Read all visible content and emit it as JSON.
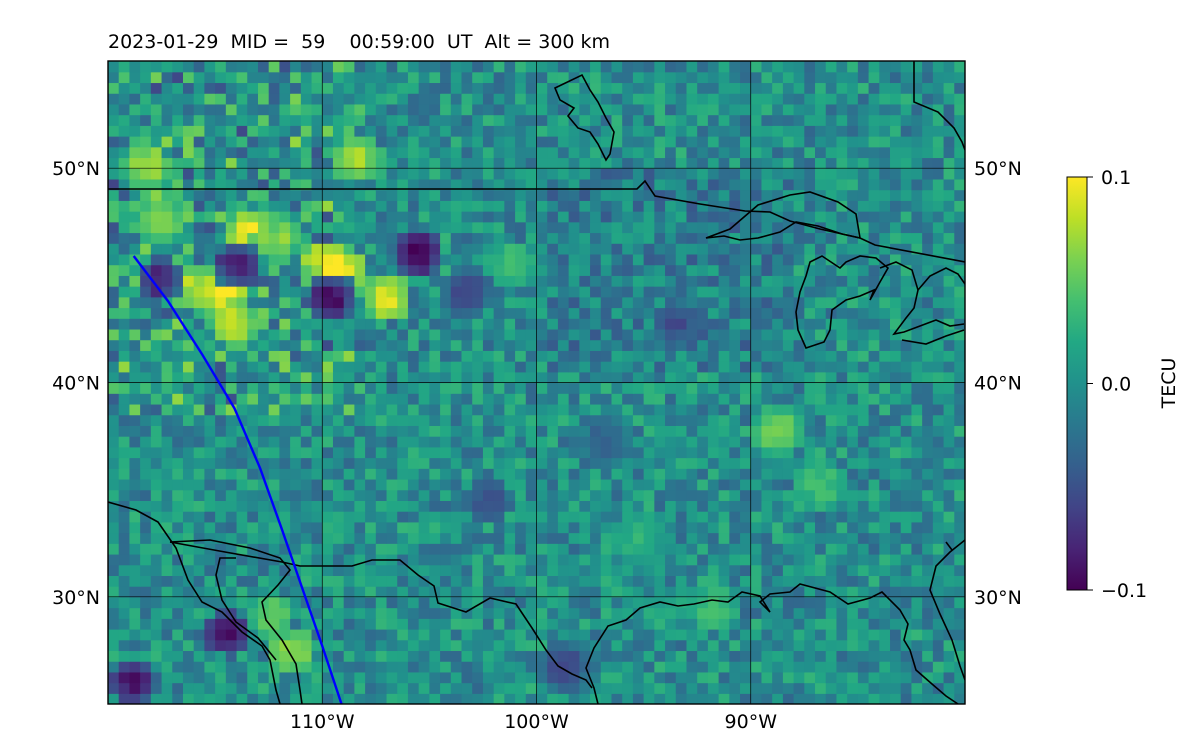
{
  "chart_data": {
    "type": "heatmap",
    "title": "2023-01-29  MID =  59    00:59:00  UT  Alt = 300 km",
    "projection": "map (Plate Carrée), central North America",
    "lon_range": [
      -120,
      -80
    ],
    "lat_range": [
      25,
      55
    ],
    "x_ticks": [
      {
        "value": -110,
        "label": "110°W"
      },
      {
        "value": -100,
        "label": "100°W"
      },
      {
        "value": -90,
        "label": "90°W"
      }
    ],
    "y_ticks": [
      {
        "value": 50,
        "label": "50°N"
      },
      {
        "value": 40,
        "label": "40°N"
      },
      {
        "value": 30,
        "label": "30°N"
      }
    ],
    "grid": true,
    "colorbar": {
      "label": "TECU",
      "colormap": "viridis",
      "range": [
        -0.1,
        0.1
      ],
      "ticks": [
        {
          "value": 0.1,
          "label": "0.1"
        },
        {
          "value": 0.0,
          "label": "0.0"
        },
        {
          "value": -0.1,
          "label": "−0.1"
        }
      ]
    },
    "track": {
      "color": "#0000ff",
      "points": [
        [
          -118.8,
          45.9
        ],
        [
          -117.2,
          43.8
        ],
        [
          -115.6,
          41.3
        ],
        [
          -114.1,
          38.8
        ],
        [
          -112.9,
          36.0
        ],
        [
          -111.9,
          33.2
        ],
        [
          -110.9,
          30.3
        ],
        [
          -110.0,
          27.7
        ],
        [
          -109.1,
          25.0
        ]
      ]
    },
    "anomalies": [
      {
        "lon": -118.5,
        "lat": 49.9,
        "value": 0.07
      },
      {
        "lon": -118.0,
        "lat": 47.8,
        "value": 0.06
      },
      {
        "lon": -117.8,
        "lat": 47.2,
        "value": 0.05
      },
      {
        "lon": -116.5,
        "lat": 44.3,
        "value": 0.07
      },
      {
        "lon": -115.3,
        "lat": 44.0,
        "value": 0.08
      },
      {
        "lon": -114.7,
        "lat": 44.1,
        "value": 0.09
      },
      {
        "lon": -114.4,
        "lat": 42.5,
        "value": 0.08
      },
      {
        "lon": -113.7,
        "lat": 46.8,
        "value": 0.09
      },
      {
        "lon": -112.4,
        "lat": 46.5,
        "value": 0.06
      },
      {
        "lon": -110.2,
        "lat": 45.3,
        "value": 0.09
      },
      {
        "lon": -109.4,
        "lat": 45.0,
        "value": 0.1
      },
      {
        "lon": -108.6,
        "lat": 50.3,
        "value": 0.07
      },
      {
        "lon": -107.2,
        "lat": 43.7,
        "value": 0.09
      },
      {
        "lon": -111.7,
        "lat": 27.3,
        "value": 0.07
      },
      {
        "lon": -112.6,
        "lat": 28.9,
        "value": 0.05
      },
      {
        "lon": -101.4,
        "lat": 45.3,
        "value": 0.04
      },
      {
        "lon": -89.0,
        "lat": 37.5,
        "value": 0.06
      },
      {
        "lon": -87.0,
        "lat": 35.0,
        "value": 0.04
      },
      {
        "lon": -92.0,
        "lat": 29.3,
        "value": 0.04
      },
      {
        "lon": -95.5,
        "lat": 32.5,
        "value": 0.03
      },
      {
        "lon": -117.8,
        "lat": 44.6,
        "value": -0.08
      },
      {
        "lon": -114.2,
        "lat": 45.2,
        "value": -0.09
      },
      {
        "lon": -109.8,
        "lat": 43.8,
        "value": -0.1
      },
      {
        "lon": -105.8,
        "lat": 45.8,
        "value": -0.1
      },
      {
        "lon": -114.7,
        "lat": 28.1,
        "value": -0.09
      },
      {
        "lon": -119.1,
        "lat": 25.8,
        "value": -0.09
      },
      {
        "lon": -103.5,
        "lat": 44.0,
        "value": -0.06
      },
      {
        "lon": -93.7,
        "lat": 42.5,
        "value": -0.05
      },
      {
        "lon": -99.0,
        "lat": 26.5,
        "value": -0.06
      },
      {
        "lon": -97.0,
        "lat": 37.0,
        "value": -0.04
      },
      {
        "lon": -102.5,
        "lat": 34.2,
        "value": -0.05
      }
    ]
  }
}
